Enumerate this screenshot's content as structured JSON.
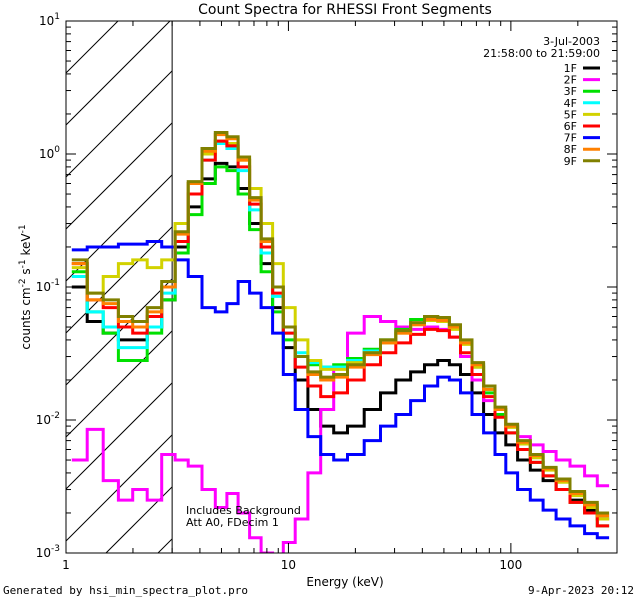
{
  "chart_data": {
    "type": "line",
    "title": "Count Spectra for RHESSI Front Segments",
    "xlabel": "Energy (keV)",
    "ylabel": "counts cm^-2 s^-1 keV^-1",
    "xscale": "log",
    "yscale": "log",
    "xlim": [
      1,
      300
    ],
    "ylim": [
      0.001,
      10
    ],
    "x_tick_labels": [
      "1",
      "10",
      "100"
    ],
    "y_tick_labels": [
      "10^-3",
      "10^-2",
      "10^-1",
      "10^0",
      "10^1"
    ],
    "date": "3-Jul-2003",
    "time_range": "21:58:00 to 21:59:00",
    "annotations": [
      "Includes Background",
      "Att A0, FDecim 1"
    ],
    "hatched_region_keV": [
      1,
      3
    ],
    "series": [
      {
        "name": "1F",
        "color": "#000000",
        "x": [
          1.15,
          1.35,
          1.6,
          1.85,
          2.15,
          2.5,
          2.9,
          3.3,
          3.8,
          4.4,
          5.0,
          5.6,
          6.3,
          7.1,
          8.0,
          9.0,
          10.0,
          11.5,
          13.0,
          15.0,
          17.0,
          20.0,
          24.0,
          28.0,
          33.0,
          38.0,
          44.0,
          50.0,
          56.0,
          63.0,
          71.0,
          80.0,
          90.0,
          100.0,
          115.0,
          130.0,
          150.0,
          170.0,
          200.0,
          230.0,
          260.0
        ],
        "values": [
          0.1,
          0.055,
          0.045,
          0.04,
          0.04,
          0.05,
          0.08,
          0.2,
          0.4,
          0.65,
          0.85,
          0.8,
          0.55,
          0.3,
          0.15,
          0.07,
          0.035,
          0.02,
          0.012,
          0.009,
          0.008,
          0.009,
          0.012,
          0.016,
          0.02,
          0.023,
          0.026,
          0.028,
          0.026,
          0.022,
          0.016,
          0.011,
          0.008,
          0.0065,
          0.005,
          0.0042,
          0.0035,
          0.003,
          0.0025,
          0.0021,
          0.0018
        ]
      },
      {
        "name": "2F",
        "color": "#ff00ff",
        "x": [
          1.15,
          1.35,
          1.6,
          1.85,
          2.15,
          2.5,
          2.9,
          3.3,
          3.8,
          4.4,
          5.0,
          5.6,
          6.3,
          7.1,
          8.0,
          9.0,
          10.0,
          11.5,
          13.0,
          15.0,
          17.0,
          20.0,
          24.0,
          28.0,
          33.0,
          38.0,
          44.0,
          50.0,
          56.0,
          63.0,
          71.0,
          80.0,
          90.0,
          100.0,
          115.0,
          130.0,
          150.0,
          170.0,
          200.0,
          230.0,
          260.0
        ],
        "values": [
          0.005,
          0.0085,
          0.0035,
          0.0025,
          0.003,
          0.0025,
          0.0055,
          0.005,
          0.0045,
          0.003,
          0.0022,
          0.0028,
          0.002,
          0.0013,
          0.001,
          0.0009,
          0.0012,
          0.0018,
          0.004,
          0.012,
          0.025,
          0.045,
          0.06,
          0.055,
          0.05,
          0.048,
          0.05,
          0.048,
          0.042,
          0.03,
          0.02,
          0.014,
          0.011,
          0.009,
          0.0075,
          0.0065,
          0.0058,
          0.005,
          0.0045,
          0.0038,
          0.0032
        ]
      },
      {
        "name": "3F",
        "color": "#00e000",
        "x": [
          1.15,
          1.35,
          1.6,
          1.85,
          2.15,
          2.5,
          2.9,
          3.3,
          3.8,
          4.4,
          5.0,
          5.6,
          6.3,
          7.1,
          8.0,
          9.0,
          10.0,
          11.5,
          13.0,
          15.0,
          17.0,
          20.0,
          24.0,
          28.0,
          33.0,
          38.0,
          44.0,
          50.0,
          56.0,
          63.0,
          71.0,
          80.0,
          90.0,
          100.0,
          115.0,
          130.0,
          150.0,
          170.0,
          200.0,
          230.0,
          260.0
        ],
        "values": [
          0.13,
          0.065,
          0.045,
          0.028,
          0.028,
          0.045,
          0.08,
          0.18,
          0.35,
          0.6,
          0.8,
          0.75,
          0.5,
          0.27,
          0.13,
          0.065,
          0.04,
          0.03,
          0.026,
          0.025,
          0.026,
          0.029,
          0.034,
          0.04,
          0.048,
          0.057,
          0.06,
          0.058,
          0.05,
          0.038,
          0.025,
          0.016,
          0.011,
          0.008,
          0.006,
          0.0048,
          0.0038,
          0.003,
          0.0024,
          0.002,
          0.0016
        ]
      },
      {
        "name": "4F",
        "color": "#00ffff",
        "x": [
          1.15,
          1.35,
          1.6,
          1.85,
          2.15,
          2.5,
          2.9,
          3.3,
          3.8,
          4.4,
          5.0,
          5.6,
          6.3,
          7.1,
          8.0,
          9.0,
          10.0,
          11.5,
          13.0,
          15.0,
          17.0,
          20.0,
          24.0,
          28.0,
          33.0,
          38.0,
          44.0,
          50.0,
          56.0,
          63.0,
          71.0,
          80.0,
          90.0,
          100.0,
          115.0,
          130.0,
          150.0,
          170.0,
          200.0,
          230.0,
          260.0
        ],
        "values": [
          0.12,
          0.065,
          0.05,
          0.035,
          0.035,
          0.05,
          0.09,
          0.22,
          0.5,
          0.9,
          1.2,
          1.1,
          0.75,
          0.38,
          0.18,
          0.085,
          0.045,
          0.032,
          0.027,
          0.025,
          0.025,
          0.028,
          0.033,
          0.039,
          0.046,
          0.053,
          0.057,
          0.056,
          0.05,
          0.038,
          0.026,
          0.017,
          0.012,
          0.009,
          0.0068,
          0.0054,
          0.0043,
          0.0035,
          0.0028,
          0.0023,
          0.0019
        ]
      },
      {
        "name": "5F",
        "color": "#d2d200",
        "x": [
          1.15,
          1.35,
          1.6,
          1.85,
          2.15,
          2.5,
          2.9,
          3.3,
          3.8,
          4.4,
          5.0,
          5.6,
          6.3,
          7.1,
          8.0,
          9.0,
          10.0,
          11.5,
          13.0,
          15.0,
          17.0,
          20.0,
          24.0,
          28.0,
          33.0,
          38.0,
          44.0,
          50.0,
          56.0,
          63.0,
          71.0,
          80.0,
          90.0,
          100.0,
          115.0,
          130.0,
          150.0,
          170.0,
          200.0,
          230.0,
          260.0
        ],
        "values": [
          0.14,
          0.09,
          0.12,
          0.15,
          0.16,
          0.14,
          0.16,
          0.3,
          0.6,
          1.0,
          1.25,
          1.2,
          0.9,
          0.55,
          0.3,
          0.15,
          0.07,
          0.04,
          0.028,
          0.024,
          0.024,
          0.027,
          0.032,
          0.038,
          0.045,
          0.052,
          0.056,
          0.055,
          0.048,
          0.037,
          0.025,
          0.017,
          0.012,
          0.0088,
          0.0066,
          0.0052,
          0.0042,
          0.0034,
          0.0027,
          0.0022,
          0.0018
        ]
      },
      {
        "name": "6F",
        "color": "#ff0000",
        "x": [
          1.15,
          1.35,
          1.6,
          1.85,
          2.15,
          2.5,
          2.9,
          3.3,
          3.8,
          4.4,
          5.0,
          5.6,
          6.3,
          7.1,
          8.0,
          9.0,
          10.0,
          11.5,
          13.0,
          15.0,
          17.0,
          20.0,
          24.0,
          28.0,
          33.0,
          38.0,
          44.0,
          50.0,
          56.0,
          63.0,
          71.0,
          80.0,
          90.0,
          100.0,
          115.0,
          130.0,
          150.0,
          170.0,
          200.0,
          230.0,
          260.0
        ],
        "values": [
          0.15,
          0.08,
          0.07,
          0.05,
          0.045,
          0.06,
          0.1,
          0.22,
          0.5,
          0.9,
          1.25,
          1.15,
          0.8,
          0.42,
          0.2,
          0.09,
          0.045,
          0.025,
          0.018,
          0.015,
          0.016,
          0.02,
          0.026,
          0.032,
          0.038,
          0.044,
          0.048,
          0.047,
          0.042,
          0.032,
          0.022,
          0.015,
          0.0105,
          0.008,
          0.006,
          0.0048,
          0.0038,
          0.003,
          0.0024,
          0.002,
          0.0016
        ]
      },
      {
        "name": "7F",
        "color": "#0000ff",
        "x": [
          1.15,
          1.35,
          1.6,
          1.85,
          2.15,
          2.5,
          2.9,
          3.3,
          3.8,
          4.4,
          5.0,
          5.6,
          6.3,
          7.1,
          8.0,
          9.0,
          10.0,
          11.5,
          13.0,
          15.0,
          17.0,
          20.0,
          24.0,
          28.0,
          33.0,
          38.0,
          44.0,
          50.0,
          56.0,
          63.0,
          71.0,
          80.0,
          90.0,
          100.0,
          115.0,
          130.0,
          150.0,
          170.0,
          200.0,
          230.0,
          260.0
        ],
        "values": [
          0.19,
          0.2,
          0.2,
          0.21,
          0.21,
          0.22,
          0.2,
          0.16,
          0.12,
          0.07,
          0.065,
          0.075,
          0.11,
          0.09,
          0.07,
          0.045,
          0.022,
          0.012,
          0.0075,
          0.0055,
          0.005,
          0.0055,
          0.007,
          0.009,
          0.011,
          0.014,
          0.018,
          0.021,
          0.02,
          0.016,
          0.011,
          0.008,
          0.0055,
          0.004,
          0.003,
          0.0025,
          0.0021,
          0.0018,
          0.0016,
          0.0014,
          0.0013
        ]
      },
      {
        "name": "8F",
        "color": "#ff8000",
        "x": [
          1.15,
          1.35,
          1.6,
          1.85,
          2.15,
          2.5,
          2.9,
          3.3,
          3.8,
          4.4,
          5.0,
          5.6,
          6.3,
          7.1,
          8.0,
          9.0,
          10.0,
          11.5,
          13.0,
          15.0,
          17.0,
          20.0,
          24.0,
          28.0,
          33.0,
          38.0,
          44.0,
          50.0,
          56.0,
          63.0,
          71.0,
          80.0,
          90.0,
          100.0,
          115.0,
          130.0,
          150.0,
          170.0,
          200.0,
          230.0,
          260.0
        ],
        "values": [
          0.15,
          0.08,
          0.075,
          0.055,
          0.05,
          0.065,
          0.1,
          0.25,
          0.6,
          1.05,
          1.4,
          1.3,
          0.9,
          0.45,
          0.22,
          0.1,
          0.05,
          0.03,
          0.022,
          0.02,
          0.021,
          0.025,
          0.031,
          0.038,
          0.045,
          0.052,
          0.057,
          0.056,
          0.05,
          0.038,
          0.026,
          0.017,
          0.012,
          0.009,
          0.0068,
          0.0054,
          0.0043,
          0.0035,
          0.0028,
          0.0023,
          0.0019
        ]
      },
      {
        "name": "9F",
        "color": "#808000",
        "x": [
          1.15,
          1.35,
          1.6,
          1.85,
          2.15,
          2.5,
          2.9,
          3.3,
          3.8,
          4.4,
          5.0,
          5.6,
          6.3,
          7.1,
          8.0,
          9.0,
          10.0,
          11.5,
          13.0,
          15.0,
          17.0,
          20.0,
          24.0,
          28.0,
          33.0,
          38.0,
          44.0,
          50.0,
          56.0,
          63.0,
          71.0,
          80.0,
          90.0,
          100.0,
          115.0,
          130.0,
          150.0,
          170.0,
          200.0,
          230.0,
          260.0
        ],
        "values": [
          0.16,
          0.09,
          0.08,
          0.06,
          0.055,
          0.07,
          0.11,
          0.26,
          0.62,
          1.1,
          1.45,
          1.35,
          0.95,
          0.47,
          0.23,
          0.1,
          0.05,
          0.03,
          0.023,
          0.021,
          0.022,
          0.026,
          0.032,
          0.04,
          0.047,
          0.054,
          0.06,
          0.059,
          0.052,
          0.04,
          0.027,
          0.018,
          0.0125,
          0.0093,
          0.007,
          0.0055,
          0.0044,
          0.0036,
          0.0029,
          0.0024,
          0.002
        ]
      }
    ]
  },
  "footer": {
    "generator": "Generated by hsi_min_spectra_plot.pro",
    "timestamp": "9-Apr-2023 20:12"
  }
}
